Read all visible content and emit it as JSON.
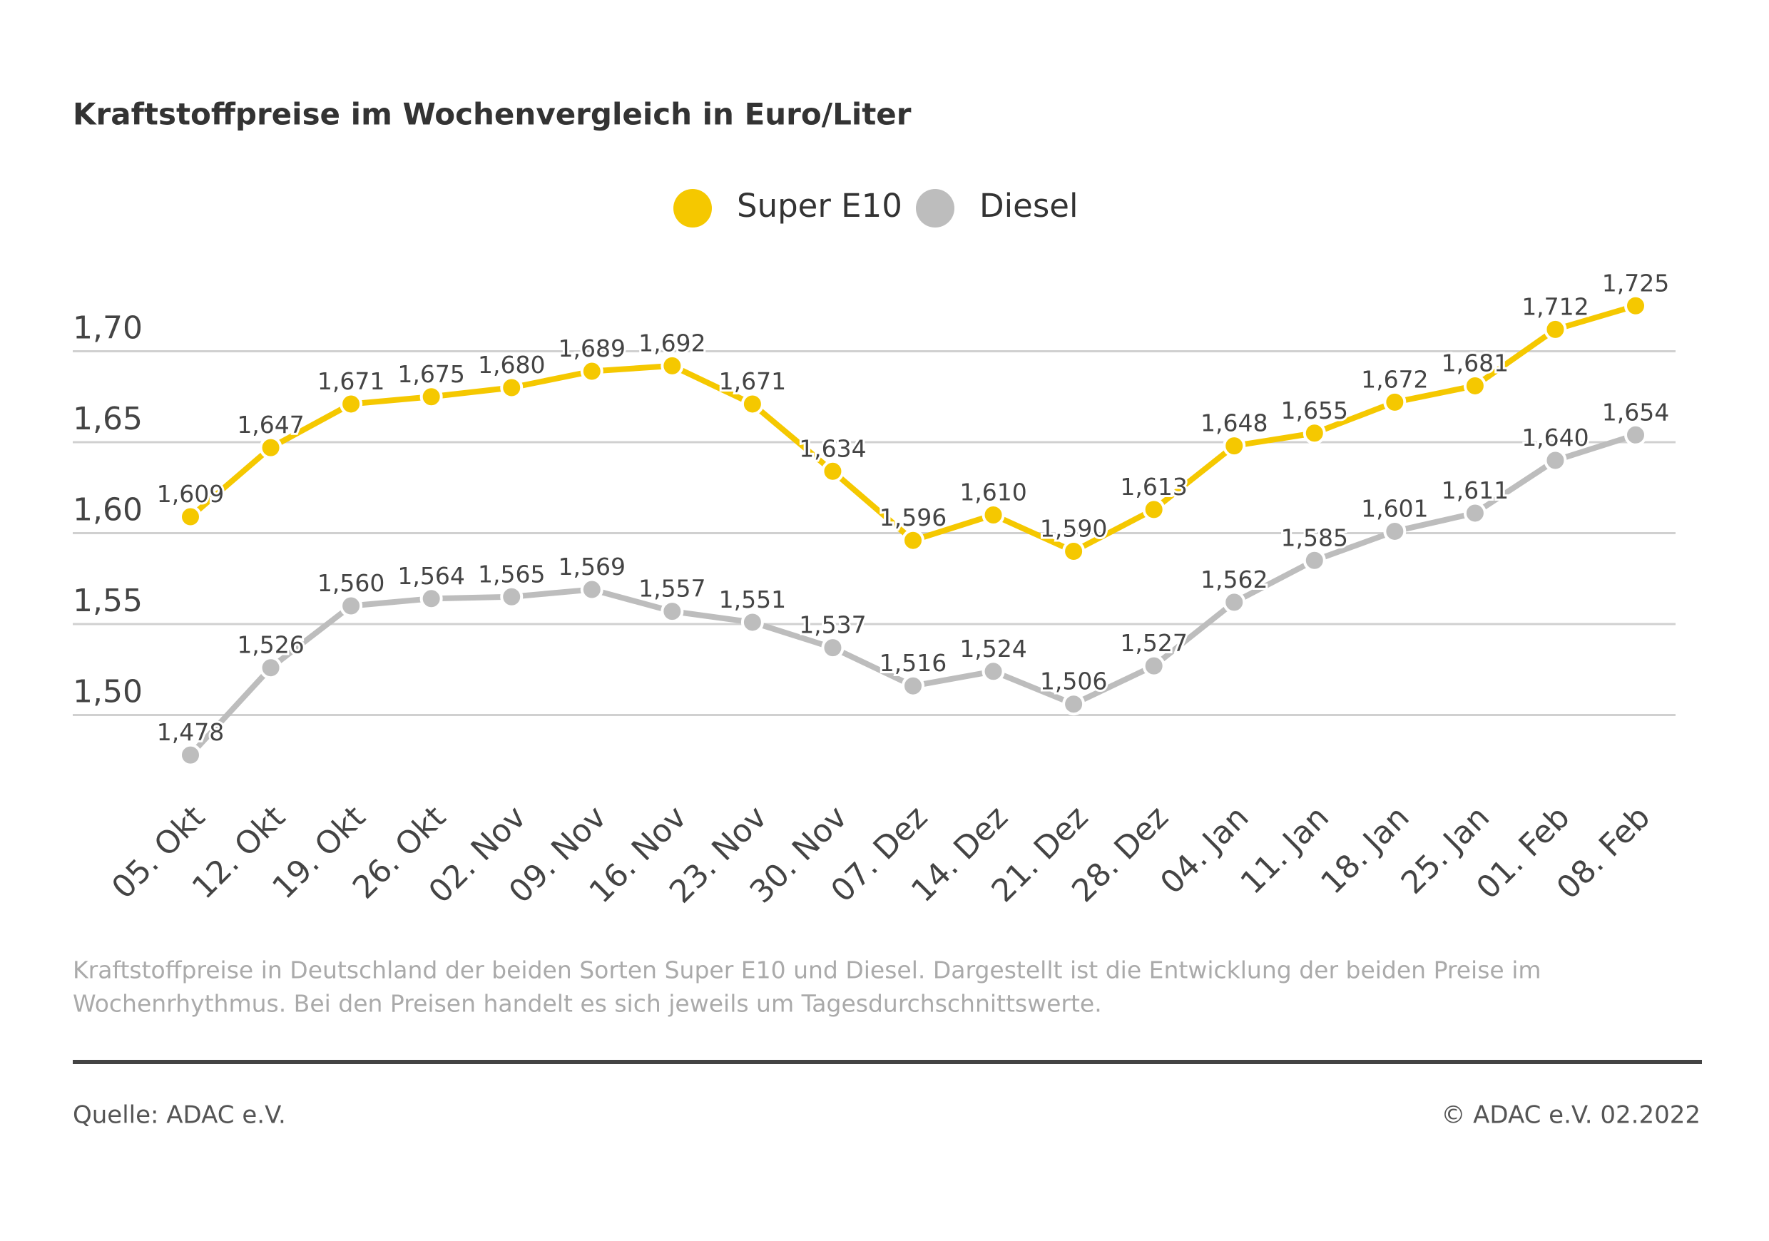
{
  "chart_data": {
    "type": "line",
    "title": "Kraftstoffpreise im Wochenvergleich in Euro/Liter",
    "categories": [
      "05. Okt",
      "12. Okt",
      "19. Okt",
      "26. Okt",
      "02. Nov",
      "09. Nov",
      "16. Nov",
      "23. Nov",
      "30. Nov",
      "07. Dez",
      "14. Dez",
      "21. Dez",
      "28. Dez",
      "04. Jan",
      "11. Jan",
      "18. Jan",
      "25. Jan",
      "01. Feb",
      "08. Feb"
    ],
    "series": [
      {
        "name": "Super E10",
        "color": "#f5c800",
        "values": [
          1.609,
          1.647,
          1.671,
          1.675,
          1.68,
          1.689,
          1.692,
          1.671,
          1.634,
          1.596,
          1.61,
          1.59,
          1.613,
          1.648,
          1.655,
          1.672,
          1.681,
          1.712,
          1.725
        ],
        "value_labels": [
          "1,609",
          "1,647",
          "1,671",
          "1,675",
          "1,680",
          "1,689",
          "1,692",
          "1,671",
          "1,634",
          "1,596",
          "1,610",
          "1,590",
          "1,613",
          "1,648",
          "1,655",
          "1,672",
          "1,681",
          "1,712",
          "1,725"
        ]
      },
      {
        "name": "Diesel",
        "color": "#bdbdbd",
        "values": [
          1.478,
          1.526,
          1.56,
          1.564,
          1.565,
          1.569,
          1.557,
          1.551,
          1.537,
          1.516,
          1.524,
          1.506,
          1.527,
          1.562,
          1.585,
          1.601,
          1.611,
          1.64,
          1.654
        ],
        "value_labels": [
          "1,478",
          "1,526",
          "1,560",
          "1,564",
          "1,565",
          "1,569",
          "1,557",
          "1,551",
          "1,537",
          "1,516",
          "1,524",
          "1,506",
          "1,527",
          "1,562",
          "1,585",
          "1,601",
          "1,611",
          "1,640",
          "1,654"
        ]
      }
    ],
    "ylim": [
      1.45,
      1.75
    ],
    "yticks": [
      {
        "value": 1.5,
        "label": "1,50"
      },
      {
        "value": 1.55,
        "label": "1,55"
      },
      {
        "value": 1.6,
        "label": "1,60"
      },
      {
        "value": 1.65,
        "label": "1,65"
      },
      {
        "value": 1.7,
        "label": "1,70"
      }
    ],
    "grid": true,
    "legend": "top",
    "footnote": [
      "Kraftstoffpreise in Deutschland der beiden Sorten Super E10 und Diesel. Dargestellt ist die Entwicklung der beiden Preise im",
      "Wochenrhythmus. Bei den Preisen handelt es sich jeweils um Tagesdurchschnittswerte."
    ],
    "source": "Quelle: ADAC e.V.",
    "copyright": "© ADAC e.V. 02.2022"
  }
}
